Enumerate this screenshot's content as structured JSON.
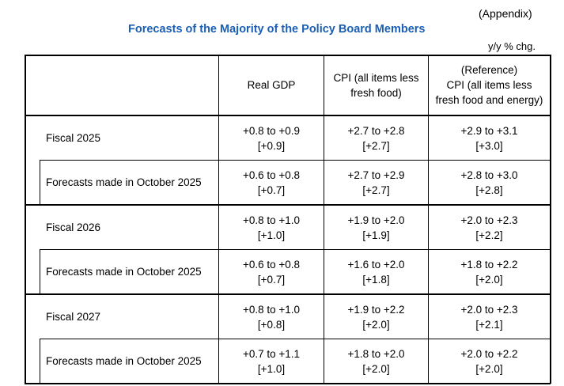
{
  "appendix": "(Appendix)",
  "title": "Forecasts of the Majority of the Policy Board Members",
  "unit": "y/y % chg.",
  "headers": {
    "real_gdp": "Real GDP",
    "cpi_l1": "CPI (all items less",
    "cpi_l2": "fresh food)",
    "ref_l1": "(Reference)",
    "ref_l2": "CPI (all items less",
    "ref_l3": "fresh food and energy)"
  },
  "rows": [
    {
      "label": "Fiscal 2025",
      "gdp": "+0.8 to +0.9",
      "gdp_m": "[+0.9]",
      "cpi": "+2.7 to +2.8",
      "cpi_m": "[+2.7]",
      "core": "+2.9 to +3.1",
      "core_m": "[+3.0]"
    },
    {
      "label": "Forecasts made in October 2025",
      "gdp": "+0.6 to +0.8",
      "gdp_m": "[+0.7]",
      "cpi": "+2.7 to +2.9",
      "cpi_m": "[+2.7]",
      "core": "+2.8 to +3.0",
      "core_m": "[+2.8]"
    },
    {
      "label": "Fiscal 2026",
      "gdp": "+0.8 to +1.0",
      "gdp_m": "[+1.0]",
      "cpi": "+1.9 to +2.0",
      "cpi_m": "[+1.9]",
      "core": "+2.0 to +2.3",
      "core_m": "[+2.2]"
    },
    {
      "label": "Forecasts made in October 2025",
      "gdp": "+0.6 to +0.8",
      "gdp_m": "[+0.7]",
      "cpi": "+1.6 to +2.0",
      "cpi_m": "[+1.8]",
      "core": "+1.8 to +2.2",
      "core_m": "[+2.0]"
    },
    {
      "label": "Fiscal 2027",
      "gdp": "+0.8 to +1.0",
      "gdp_m": "[+0.8]",
      "cpi": "+1.9 to +2.2",
      "cpi_m": "[+2.0]",
      "core": "+2.0 to +2.3",
      "core_m": "[+2.1]"
    },
    {
      "label": "Forecasts made in October 2025",
      "gdp": "+0.7 to +1.1",
      "gdp_m": "[+1.0]",
      "cpi": "+1.8 to +2.0",
      "cpi_m": "[+2.0]",
      "core": "+2.0 to +2.2",
      "core_m": "[+2.0]"
    }
  ]
}
